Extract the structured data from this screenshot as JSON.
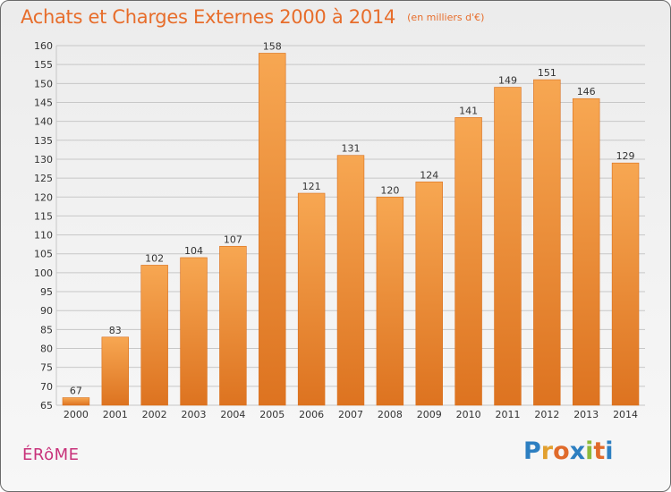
{
  "header": {
    "title": "Achats et Charges Externes 2000 à 2014",
    "unit": "(en milliers d'€)"
  },
  "footer": {
    "place": "ÉRôME",
    "logo_letters": [
      "P",
      "r",
      "o",
      "x",
      "i",
      "t",
      "i"
    ],
    "logo_colors": [
      "#2d7fc1",
      "#e2a02f",
      "#e06b2b",
      "#2d7fc1",
      "#8dbb3b",
      "#e06b2b",
      "#2d7fc1"
    ]
  },
  "colors": {
    "bar_top": "#f7a752",
    "bar_bottom": "#dd7320",
    "bar_edge": "#d96f1c",
    "grid": "#c7c7c7",
    "title": "#e76d2b",
    "place": "#c8327a"
  },
  "chart_data": {
    "type": "bar",
    "title": "Achats et Charges Externes 2000 à 2014",
    "subtitle": "(en milliers d'€)",
    "xlabel": "",
    "ylabel": "",
    "categories": [
      "2000",
      "2001",
      "2002",
      "2003",
      "2004",
      "2005",
      "2006",
      "2007",
      "2008",
      "2009",
      "2010",
      "2011",
      "2012",
      "2013",
      "2014"
    ],
    "values": [
      67,
      83,
      102,
      104,
      107,
      158,
      121,
      131,
      120,
      124,
      141,
      149,
      151,
      146,
      129
    ],
    "ylim": [
      65,
      160
    ],
    "ytick_step": 5,
    "grid": true,
    "legend": "none"
  }
}
